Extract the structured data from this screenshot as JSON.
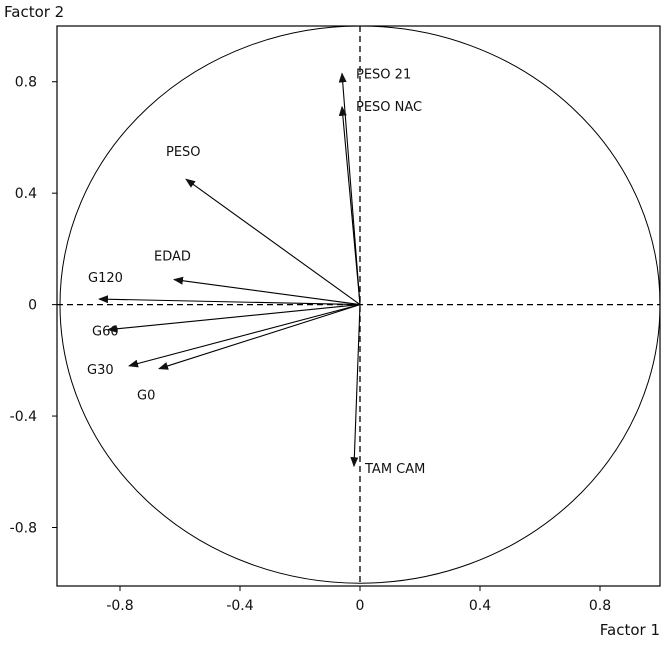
{
  "chart_data": {
    "type": "scatter",
    "subtype": "correlation-circle",
    "title": "",
    "xlabel": "Factor 1",
    "ylabel": "Factor 2",
    "xlim": [
      -1.01,
      1.0
    ],
    "ylim": [
      -1.01,
      1.0
    ],
    "x_ticks": [
      -0.8,
      -0.4,
      0,
      0.4,
      0.8
    ],
    "y_ticks": [
      -0.8,
      -0.4,
      0,
      0.4,
      0.8
    ],
    "x_tick_labels": [
      "-0.8",
      "-0.4",
      "0",
      "0.4",
      "0.8"
    ],
    "y_tick_labels": [
      "-0.8",
      "-0.4",
      "0",
      "0.4",
      "0.8"
    ],
    "grid": false,
    "unit_circle": true,
    "origin_axes": "dashed",
    "vectors": [
      {
        "label": "PESO 21",
        "x": -0.06,
        "y": 0.83
      },
      {
        "label": "PESO NAC",
        "x": -0.06,
        "y": 0.71
      },
      {
        "label": "PESO",
        "x": -0.58,
        "y": 0.45
      },
      {
        "label": "EDAD",
        "x": -0.62,
        "y": 0.09
      },
      {
        "label": "G120",
        "x": -0.87,
        "y": 0.02
      },
      {
        "label": "G60",
        "x": -0.84,
        "y": -0.09
      },
      {
        "label": "G30",
        "x": -0.77,
        "y": -0.22
      },
      {
        "label": "G0",
        "x": -0.67,
        "y": -0.23
      },
      {
        "label": "TAM CAM",
        "x": -0.02,
        "y": -0.58
      }
    ]
  }
}
